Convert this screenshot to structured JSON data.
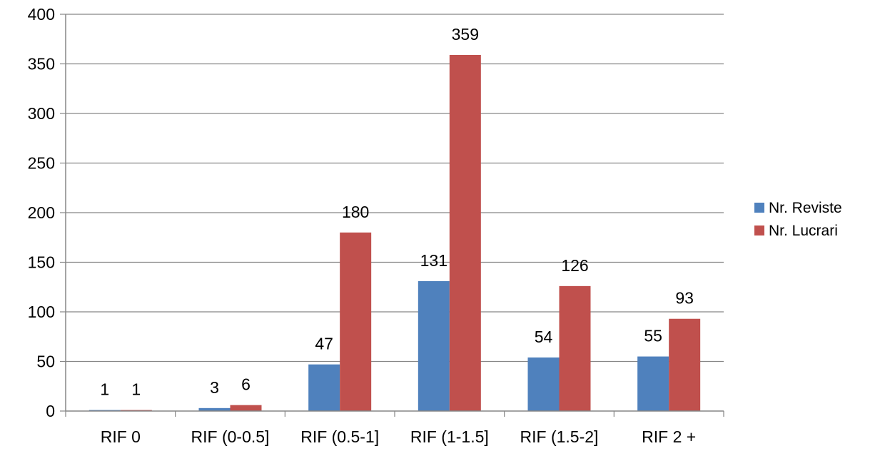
{
  "chart_data": {
    "type": "bar",
    "title": "",
    "xlabel": "",
    "ylabel": "",
    "categories": [
      "RIF  0",
      "RIF  (0-0.5]",
      "RIF  (0.5-1]",
      "RIF (1-1.5]",
      "RIF (1.5-2]",
      "RIF 2 +"
    ],
    "series": [
      {
        "name": "Nr. Reviste",
        "values": [
          1,
          3,
          47,
          131,
          54,
          55
        ],
        "color": "#4F81BD"
      },
      {
        "name": "Nr. Lucrari",
        "values": [
          1,
          6,
          180,
          359,
          126,
          93
        ],
        "color": "#C0504D"
      }
    ],
    "ylim": [
      0,
      400
    ],
    "yticks": [
      0,
      50,
      100,
      150,
      200,
      250,
      300,
      350,
      400
    ],
    "grid": true,
    "data_labels": true,
    "legend": "right"
  }
}
